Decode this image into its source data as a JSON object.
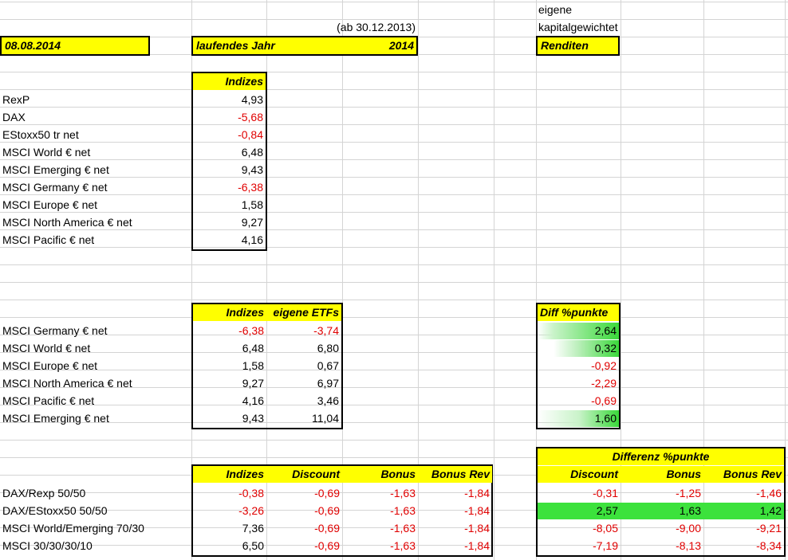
{
  "header": {
    "date": "08.08.2014",
    "since": "(ab 30.12.2013)",
    "current_year_label": "laufendes Jahr",
    "year": "2014",
    "own_line1": "eigene",
    "own_line2": "kapitalgewichtet",
    "returns_label": "Renditen"
  },
  "table1": {
    "header": "Indizes",
    "rows": [
      {
        "name": "RexP",
        "value": "4,93"
      },
      {
        "name": "DAX",
        "value": "-5,68"
      },
      {
        "name": "EStoxx50 tr net",
        "value": "-0,84"
      },
      {
        "name": "MSCI World € net",
        "value": "6,48"
      },
      {
        "name": "MSCI Emerging € net",
        "value": "9,43"
      },
      {
        "name": "MSCI Germany € net",
        "value": "-6,38"
      },
      {
        "name": "MSCI Europe € net",
        "value": "1,58"
      },
      {
        "name": "MSCI North America € net",
        "value": "9,27"
      },
      {
        "name": "MSCI Pacific € net",
        "value": "4,16"
      }
    ]
  },
  "table2": {
    "header_indizes": "Indizes",
    "header_etfs": "eigene ETFs",
    "header_diff": "Diff %punkte",
    "rows": [
      {
        "name": "MSCI Germany € net",
        "index": "-6,38",
        "etf": "-3,74",
        "diff": "2,64",
        "diff_level": 1.0
      },
      {
        "name": "MSCI World € net",
        "index": "6,48",
        "etf": "6,80",
        "diff": "0,32",
        "diff_level": 0.12
      },
      {
        "name": "MSCI Europe € net",
        "index": "1,58",
        "etf": "0,67",
        "diff": "-0,92",
        "diff_level": 0
      },
      {
        "name": "MSCI North America € net",
        "index": "9,27",
        "etf": "6,97",
        "diff": "-2,29",
        "diff_level": 0
      },
      {
        "name": "MSCI Pacific € net",
        "index": "4,16",
        "etf": "3,46",
        "diff": "-0,69",
        "diff_level": 0
      },
      {
        "name": "MSCI Emerging € net",
        "index": "9,43",
        "etf": "11,04",
        "diff": "1,60",
        "diff_level": 0.61
      }
    ]
  },
  "table3": {
    "headers": [
      "Indizes",
      "Discount",
      "Bonus",
      "Bonus Rev"
    ],
    "diff_title": "Differenz %punkte",
    "diff_headers": [
      "Discount",
      "Bonus",
      "Bonus Rev"
    ],
    "rows": [
      {
        "name": "DAX/Rexp 50/50",
        "index": "-0,38",
        "discount": "-0,69",
        "bonus": "-1,63",
        "bonus_rev": "-1,84",
        "d_discount": "-0,31",
        "d_bonus": "-1,25",
        "d_bonus_rev": "-1,46"
      },
      {
        "name": "DAX/EStoxx50 50/50",
        "index": "-3,26",
        "discount": "-0,69",
        "bonus": "-1,63",
        "bonus_rev": "-1,84",
        "d_discount": "2,57",
        "d_bonus": "1,63",
        "d_bonus_rev": "1,42"
      },
      {
        "name": "MSCI World/Emerging 70/30",
        "index": "7,36",
        "discount": "-0,69",
        "bonus": "-1,63",
        "bonus_rev": "-1,84",
        "d_discount": "-8,05",
        "d_bonus": "-9,00",
        "d_bonus_rev": "-9,21"
      },
      {
        "name": "MSCI 30/30/30/10",
        "index": "6,50",
        "discount": "-0,69",
        "bonus": "-1,63",
        "bonus_rev": "-1,84",
        "d_discount": "-7,19",
        "d_bonus": "-8,13",
        "d_bonus_rev": "-8,34"
      }
    ]
  },
  "colors": {
    "negative": "#e00000",
    "header_fill": "#ffff00",
    "positive_fill": "#3ce23c"
  }
}
